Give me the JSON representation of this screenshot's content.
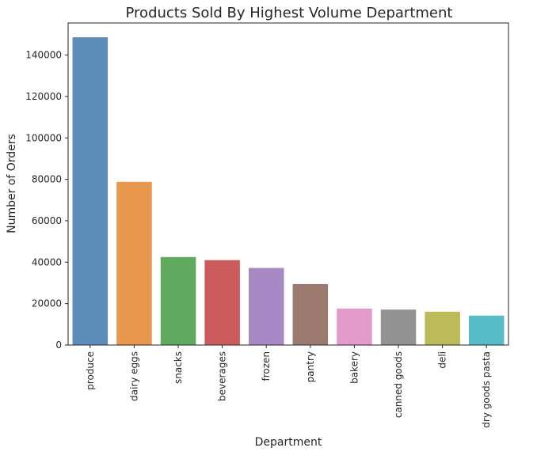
{
  "chart_data": {
    "type": "bar",
    "title": "Products Sold By Highest Volume Department",
    "xlabel": "Department",
    "ylabel": "Number of Orders",
    "categories": [
      "produce",
      "dairy eggs",
      "snacks",
      "beverages",
      "frozen",
      "pantry",
      "bakery",
      "canned goods",
      "deli",
      "dry goods pasta"
    ],
    "values": [
      148600,
      78800,
      42500,
      41000,
      37200,
      29400,
      17600,
      17100,
      16100,
      14200
    ],
    "ylim": [
      0,
      155500
    ],
    "yticks": [
      0,
      20000,
      40000,
      60000,
      80000,
      100000,
      120000,
      140000
    ],
    "ytick_labels": [
      "0",
      "20000",
      "40000",
      "60000",
      "80000",
      "100000",
      "120000",
      "140000"
    ],
    "colors": [
      "#5b8db8",
      "#e8984e",
      "#5faa5f",
      "#cc5c5c",
      "#a78ac4",
      "#9c7a70",
      "#e29bcb",
      "#929292",
      "#bcbb5a",
      "#55bcc8"
    ],
    "grid": false,
    "legend": "none"
  }
}
